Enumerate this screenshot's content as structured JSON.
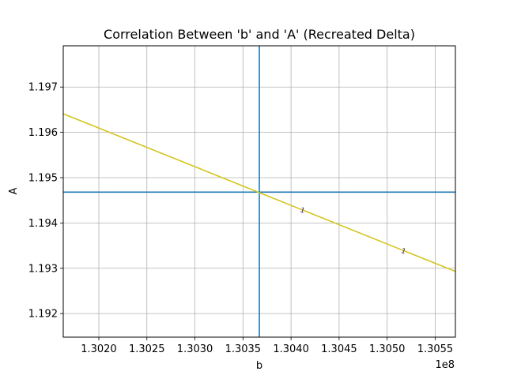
{
  "chart_data": {
    "type": "line",
    "title": "Correlation Between 'b' and 'A' (Recreated Delta)",
    "xlabel": "b",
    "ylabel": "A",
    "x_offset_label": "1e8",
    "x_ticks": [
      {
        "value": 1.302,
        "label": "1.3020"
      },
      {
        "value": 1.3025,
        "label": "1.3025"
      },
      {
        "value": 1.303,
        "label": "1.3030"
      },
      {
        "value": 1.3035,
        "label": "1.3035"
      },
      {
        "value": 1.304,
        "label": "1.3040"
      },
      {
        "value": 1.3045,
        "label": "1.3045"
      },
      {
        "value": 1.305,
        "label": "1.3050"
      },
      {
        "value": 1.3055,
        "label": "1.3055"
      }
    ],
    "y_ticks": [
      {
        "value": 1.192,
        "label": "1.192"
      },
      {
        "value": 1.193,
        "label": "1.193"
      },
      {
        "value": 1.194,
        "label": "1.194"
      },
      {
        "value": 1.195,
        "label": "1.195"
      },
      {
        "value": 1.196,
        "label": "1.196"
      },
      {
        "value": 1.197,
        "label": "1.197"
      }
    ],
    "xlim": [
      1.30163,
      1.30571
    ],
    "ylim": [
      1.19148,
      1.19791
    ],
    "grid": true,
    "series": [
      {
        "color": "#d4c51e",
        "x": [
          1.30163,
          1.30571
        ],
        "y": [
          1.19641,
          1.19293
        ]
      }
    ],
    "reference_lines": {
      "color": "#1f77b4",
      "vertical_x": 1.30367,
      "horizontal_y": 1.19468
    },
    "contour_labels": [
      {
        "x": 1.30412,
        "y": 1.19428,
        "text": "1",
        "color": "#3b1f6b"
      },
      {
        "x": 1.30517,
        "y": 1.19338,
        "text": "1",
        "color": "#3b1f6b"
      }
    ]
  }
}
